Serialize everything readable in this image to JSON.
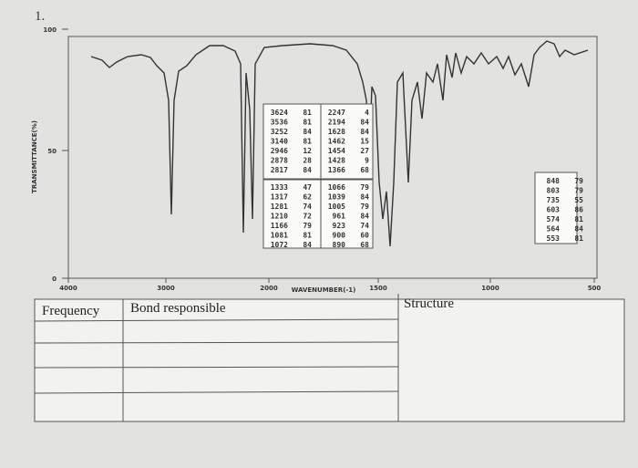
{
  "question_number": "1.",
  "spectrum": {
    "y_axis_title": "TRANSMITTANCE(%)",
    "y_ticks": [
      100,
      50,
      0
    ],
    "x_ticks": [
      4000,
      3000,
      2000,
      1500,
      1000,
      500
    ],
    "x_axis_title": "WAVENUMBER(-1)",
    "peak_tables": [
      [
        [
          3624,
          81
        ],
        [
          3536,
          81
        ],
        [
          3252,
          84
        ],
        [
          3140,
          81
        ],
        [
          2946,
          12
        ],
        [
          2878,
          28
        ],
        [
          2817,
          84
        ]
      ],
      [
        [
          2247,
          4
        ],
        [
          2194,
          84
        ],
        [
          1628,
          84
        ],
        [
          1462,
          15
        ],
        [
          1454,
          27
        ],
        [
          1428,
          9
        ],
        [
          1366,
          68
        ]
      ],
      [
        [
          1333,
          47
        ],
        [
          1317,
          62
        ],
        [
          1281,
          74
        ],
        [
          1210,
          72
        ],
        [
          1166,
          79
        ],
        [
          1081,
          81
        ],
        [
          1072,
          84
        ]
      ],
      [
        [
          1066,
          79
        ],
        [
          1039,
          84
        ],
        [
          1005,
          79
        ],
        [
          961,
          84
        ],
        [
          923,
          74
        ],
        [
          900,
          60
        ],
        [
          890,
          68
        ]
      ],
      [
        [
          848,
          79
        ],
        [
          803,
          79
        ],
        [
          735,
          55
        ],
        [
          603,
          86
        ],
        [
          574,
          81
        ],
        [
          564,
          84
        ],
        [
          553,
          81
        ]
      ]
    ]
  },
  "table": {
    "headers": [
      "Frequency",
      "Bond responsible",
      "Structure"
    ]
  }
}
